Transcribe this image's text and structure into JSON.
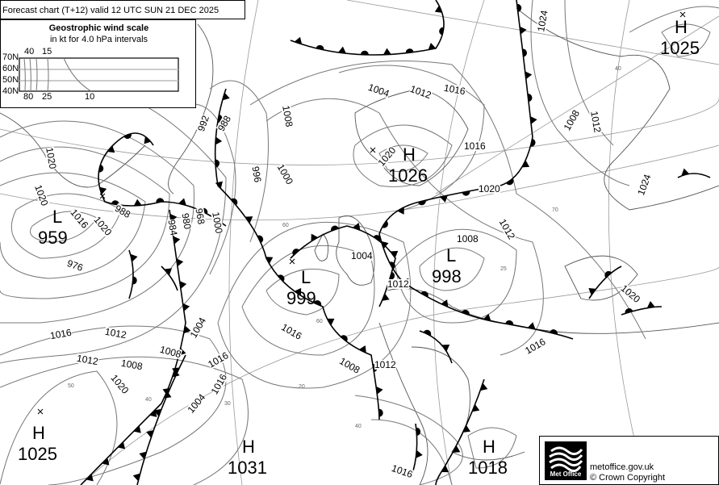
{
  "header": {
    "title": "Forecast chart (T+12) valid 12 UTC SUN 21  DEC 2025"
  },
  "wind_scale": {
    "title": "Geostrophic wind scale",
    "subtitle": "in kt for 4.0 hPa intervals",
    "latitudes": [
      "70N",
      "60N",
      "50N",
      "40N"
    ],
    "top_labels": [
      "40",
      "15"
    ],
    "bottom_labels": [
      "80",
      "25",
      "10"
    ]
  },
  "pressure_centres": [
    {
      "type": "H",
      "value": "1025"
    },
    {
      "type": "H",
      "value": "1026"
    },
    {
      "type": "L",
      "value": "959"
    },
    {
      "type": "L",
      "value": "999"
    },
    {
      "type": "L",
      "value": "998"
    },
    {
      "type": "H",
      "value": "1025"
    },
    {
      "type": "H",
      "value": "1031"
    },
    {
      "type": "H",
      "value": "1018"
    }
  ],
  "isobar_labels": [
    "1016",
    "1012",
    "1008",
    "1016",
    "1020",
    "1004",
    "1008",
    "1012",
    "1016",
    "1024",
    "1020",
    "1020",
    "1020",
    "1016",
    "1020",
    "988",
    "976",
    "984",
    "980",
    "968",
    "1000",
    "988",
    "992",
    "996",
    "1000",
    "1008",
    "1004",
    "1012",
    "1016",
    "1012",
    "1008",
    "1004",
    "1012",
    "1016",
    "1008",
    "1012",
    "1016",
    "1020",
    "1024",
    "1020",
    "1016",
    "1004",
    "1008",
    "1012",
    "1016"
  ],
  "latitude_labels": [
    "40",
    "60",
    "70",
    "50",
    "40",
    "30",
    "20",
    "40",
    "60",
    "25"
  ],
  "footer": {
    "logo_text": "Met Office",
    "website": "metoffice.gov.uk",
    "copyright": "© Crown Copyright"
  },
  "colors": {
    "isobar": "#777777",
    "front": "#000000",
    "coast": "#555555",
    "background": "#ffffff"
  }
}
